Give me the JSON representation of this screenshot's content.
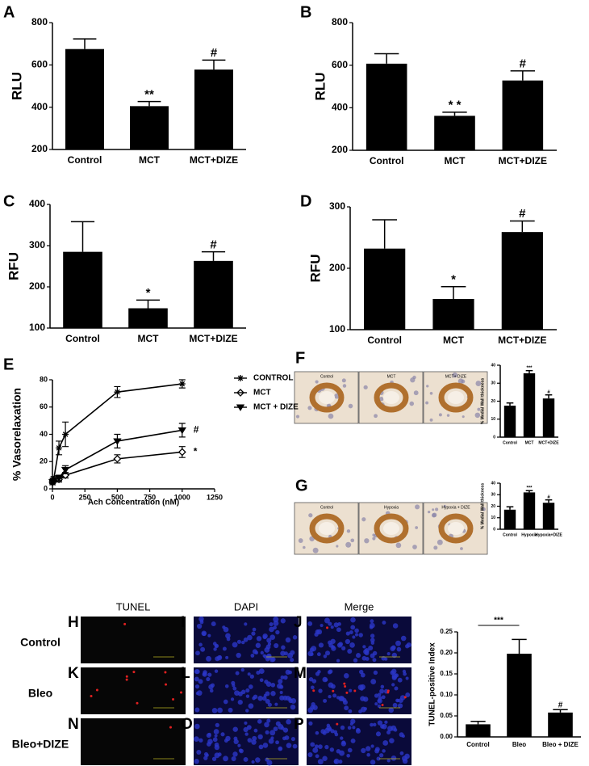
{
  "chart_data": [
    {
      "type": "bar",
      "panel_label": "A",
      "ylabel": "RLU",
      "categories": [
        "Control",
        "MCT",
        "MCT+DIZE"
      ],
      "values": [
        675,
        405,
        578
      ],
      "errors": [
        48,
        22,
        45
      ],
      "annotations": [
        null,
        "**",
        "#"
      ],
      "color": "#000000",
      "ylim": [
        200,
        800
      ],
      "yticks": [
        200,
        400,
        600,
        800
      ]
    },
    {
      "type": "bar",
      "panel_label": "B",
      "ylabel": "RLU",
      "categories": [
        "Control",
        "MCT",
        "MCT+DIZE"
      ],
      "values": [
        607,
        362,
        528
      ],
      "errors": [
        47,
        17,
        45
      ],
      "annotations": [
        null,
        "* *",
        "#"
      ],
      "color": "#000000",
      "ylim": [
        200,
        800
      ],
      "yticks": [
        200,
        400,
        600,
        800
      ]
    },
    {
      "type": "bar",
      "panel_label": "C",
      "ylabel": "RFU",
      "categories": [
        "Control",
        "MCT",
        "MCT+DIZE"
      ],
      "values": [
        285,
        148,
        263
      ],
      "errors": [
        73,
        20,
        22
      ],
      "annotations": [
        null,
        "*",
        "#"
      ],
      "color": "#000000",
      "ylim": [
        100,
        400
      ],
      "yticks": [
        100,
        200,
        300,
        400
      ]
    },
    {
      "type": "bar",
      "panel_label": "D",
      "ylabel": "RFU",
      "categories": [
        "Control",
        "MCT",
        "MCT+DIZE"
      ],
      "values": [
        232,
        150,
        259
      ],
      "errors": [
        47,
        20,
        18
      ],
      "annotations": [
        null,
        "*",
        "#"
      ],
      "color": "#000000",
      "ylim": [
        100,
        300
      ],
      "yticks": [
        100,
        200,
        300
      ]
    },
    {
      "type": "line",
      "panel_label": "E",
      "ylabel": "% Vasorelaxation",
      "xlabel": "Ach Concentration (nM)",
      "x": [
        1,
        10,
        50,
        100,
        500,
        1000
      ],
      "series": [
        {
          "name": "CONTROL",
          "color": "#000000",
          "marker": "asterisk",
          "values": [
            5,
            7,
            30,
            40,
            71,
            77
          ],
          "errors": [
            2,
            2,
            5,
            9,
            4,
            3
          ],
          "annotation": null
        },
        {
          "name": "MCT",
          "color": "#000000",
          "marker": "diamond",
          "values": [
            5,
            6,
            7,
            10,
            22,
            27
          ],
          "errors": [
            1,
            1,
            2,
            2,
            3,
            4
          ],
          "annotation": "*"
        },
        {
          "name": "MCT + DIZE",
          "color": "#000000",
          "marker": "triangle-down",
          "values": [
            5,
            6,
            8,
            14,
            35,
            43
          ],
          "errors": [
            1,
            1,
            2,
            3,
            5,
            5
          ],
          "annotation": "#"
        }
      ],
      "xlim": [
        0,
        1250
      ],
      "xticks": [
        0,
        250,
        500,
        750,
        1000,
        1250
      ],
      "ylim": [
        0,
        80
      ],
      "yticks": [
        0,
        20,
        40,
        60,
        80
      ],
      "legend": "right"
    },
    {
      "type": "bar",
      "panel_label": "F",
      "ylabel": "% Medial Wall thickness",
      "categories": [
        "Control",
        "MCT",
        "MCT+DIZE"
      ],
      "values": [
        17.5,
        35.5,
        21.5
      ],
      "errors": [
        1.5,
        1.5,
        2
      ],
      "annotations": [
        null,
        "***",
        "#"
      ],
      "color": "#000000",
      "ylim": [
        0,
        40
      ],
      "yticks": [
        0,
        10,
        20,
        30,
        40
      ]
    },
    {
      "type": "bar",
      "panel_label": "G",
      "ylabel": "% Medial Wall thickness",
      "categories": [
        "Control",
        "Hypoxia",
        "Hypoxia+DIZE"
      ],
      "values": [
        17,
        32,
        23
      ],
      "errors": [
        2.5,
        1.5,
        2.5
      ],
      "annotations": [
        null,
        "***",
        "#"
      ],
      "color": "#000000",
      "ylim": [
        0,
        40
      ],
      "yticks": [
        0,
        10,
        20,
        30,
        40
      ]
    },
    {
      "type": "bar",
      "ylabel": "TUNEL-positive Index",
      "categories": [
        "Control",
        "Bleo",
        "Bleo + DIZE"
      ],
      "values": [
        0.03,
        0.198,
        0.058
      ],
      "errors": [
        0.007,
        0.034,
        0.007
      ],
      "annotations": [
        null,
        null,
        "#"
      ],
      "bracket": "***",
      "color": "#000000",
      "ylim": [
        0,
        0.25
      ],
      "yticks": [
        {
          "value": 0,
          "label": "0.00"
        },
        {
          "value": 0.05,
          "label": "0.05"
        },
        {
          "value": 0.1,
          "label": "0.10"
        },
        {
          "value": 0.15,
          "label": "0.15"
        },
        {
          "value": 0.2,
          "label": "0.20"
        },
        {
          "value": 0.25,
          "label": "0.25"
        }
      ]
    }
  ],
  "micrographs": {
    "F": [
      "Control",
      "MCT",
      "MCT+ DIZE"
    ],
    "G": [
      "Control",
      "Hypoxia",
      "Hypoxia + DIZE"
    ]
  },
  "tunel_grid": {
    "columns": [
      "TUNEL",
      "DAPI",
      "Merge"
    ],
    "rows": [
      "Control",
      "Bleo",
      "Bleo+DIZE"
    ],
    "panel_labels": [
      "H",
      "I",
      "J",
      "K",
      "L",
      "M",
      "N",
      "O",
      "P"
    ]
  }
}
